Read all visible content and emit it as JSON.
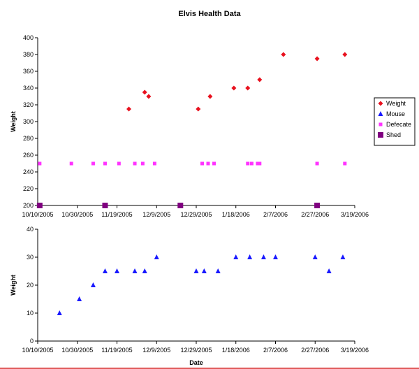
{
  "chart_data": {
    "title": "Elvis Health Data",
    "xlabel": "Date",
    "x_ticks": [
      "10/10/2005",
      "10/30/2005",
      "11/19/2005",
      "12/9/2005",
      "12/29/2005",
      "1/18/2006",
      "2/7/2006",
      "2/27/2006",
      "3/19/2006"
    ],
    "colors": {
      "Weight": "#e8111e",
      "Mouse": "#1a1aff",
      "Defecate": "#ff33ff",
      "Shed": "#800080"
    },
    "charts": [
      {
        "type": "scatter",
        "ylabel": "Weight",
        "xlim": [
          "10/10/2005",
          "3/19/2006"
        ],
        "ylim": [
          200,
          400
        ],
        "y_ticks": [
          200,
          220,
          240,
          260,
          280,
          300,
          320,
          340,
          360,
          380,
          400
        ],
        "legend": {
          "position": "right",
          "entries": [
            "Weight",
            "Mouse",
            "Defecate",
            "Shed"
          ]
        },
        "series": [
          {
            "name": "Weight",
            "marker": "diamond",
            "points": [
              [
                "11/25/2005",
                315
              ],
              [
                "12/3/2005",
                335
              ],
              [
                "12/5/2005",
                330
              ],
              [
                "12/30/2005",
                315
              ],
              [
                "1/5/2006",
                330
              ],
              [
                "1/17/2006",
                340
              ],
              [
                "1/24/2006",
                340
              ],
              [
                "1/30/2006",
                350
              ],
              [
                "2/11/2006",
                380
              ],
              [
                "2/28/2006",
                375
              ],
              [
                "3/14/2006",
                380
              ]
            ]
          },
          {
            "name": "Defecate",
            "marker": "square",
            "points": [
              [
                "10/11/2005",
                250
              ],
              [
                "10/27/2005",
                250
              ],
              [
                "11/7/2005",
                250
              ],
              [
                "11/13/2005",
                250
              ],
              [
                "11/20/2005",
                250
              ],
              [
                "11/28/2005",
                250
              ],
              [
                "12/2/2005",
                250
              ],
              [
                "12/8/2005",
                250
              ],
              [
                "1/1/2006",
                250
              ],
              [
                "1/4/2006",
                250
              ],
              [
                "1/7/2006",
                250
              ],
              [
                "1/24/2006",
                250
              ],
              [
                "1/26/2006",
                250
              ],
              [
                "1/29/2006",
                250
              ],
              [
                "1/30/2006",
                250
              ],
              [
                "2/28/2006",
                250
              ],
              [
                "3/14/2006",
                250
              ]
            ]
          },
          {
            "name": "Shed",
            "marker": "square-large",
            "points": [
              [
                "10/11/2005",
                200
              ],
              [
                "11/13/2005",
                200
              ],
              [
                "12/21/2005",
                200
              ],
              [
                "2/28/2006",
                200
              ]
            ]
          }
        ]
      },
      {
        "type": "scatter",
        "ylabel": "Weight",
        "xlim": [
          "10/10/2005",
          "3/19/2006"
        ],
        "ylim": [
          0,
          40
        ],
        "y_ticks": [
          0,
          10,
          20,
          30,
          40
        ],
        "series": [
          {
            "name": "Mouse",
            "marker": "triangle",
            "points": [
              [
                "10/21/2005",
                10
              ],
              [
                "10/31/2005",
                15
              ],
              [
                "11/7/2005",
                20
              ],
              [
                "11/13/2005",
                25
              ],
              [
                "11/19/2005",
                25
              ],
              [
                "11/28/2005",
                25
              ],
              [
                "12/3/2005",
                25
              ],
              [
                "12/9/2005",
                30
              ],
              [
                "12/29/2005",
                25
              ],
              [
                "1/2/2006",
                25
              ],
              [
                "1/9/2006",
                25
              ],
              [
                "1/18/2006",
                30
              ],
              [
                "1/25/2006",
                30
              ],
              [
                "2/1/2006",
                30
              ],
              [
                "2/7/2006",
                30
              ],
              [
                "2/27/2006",
                30
              ],
              [
                "3/6/2006",
                25
              ],
              [
                "3/13/2006",
                30
              ]
            ]
          }
        ]
      }
    ]
  }
}
